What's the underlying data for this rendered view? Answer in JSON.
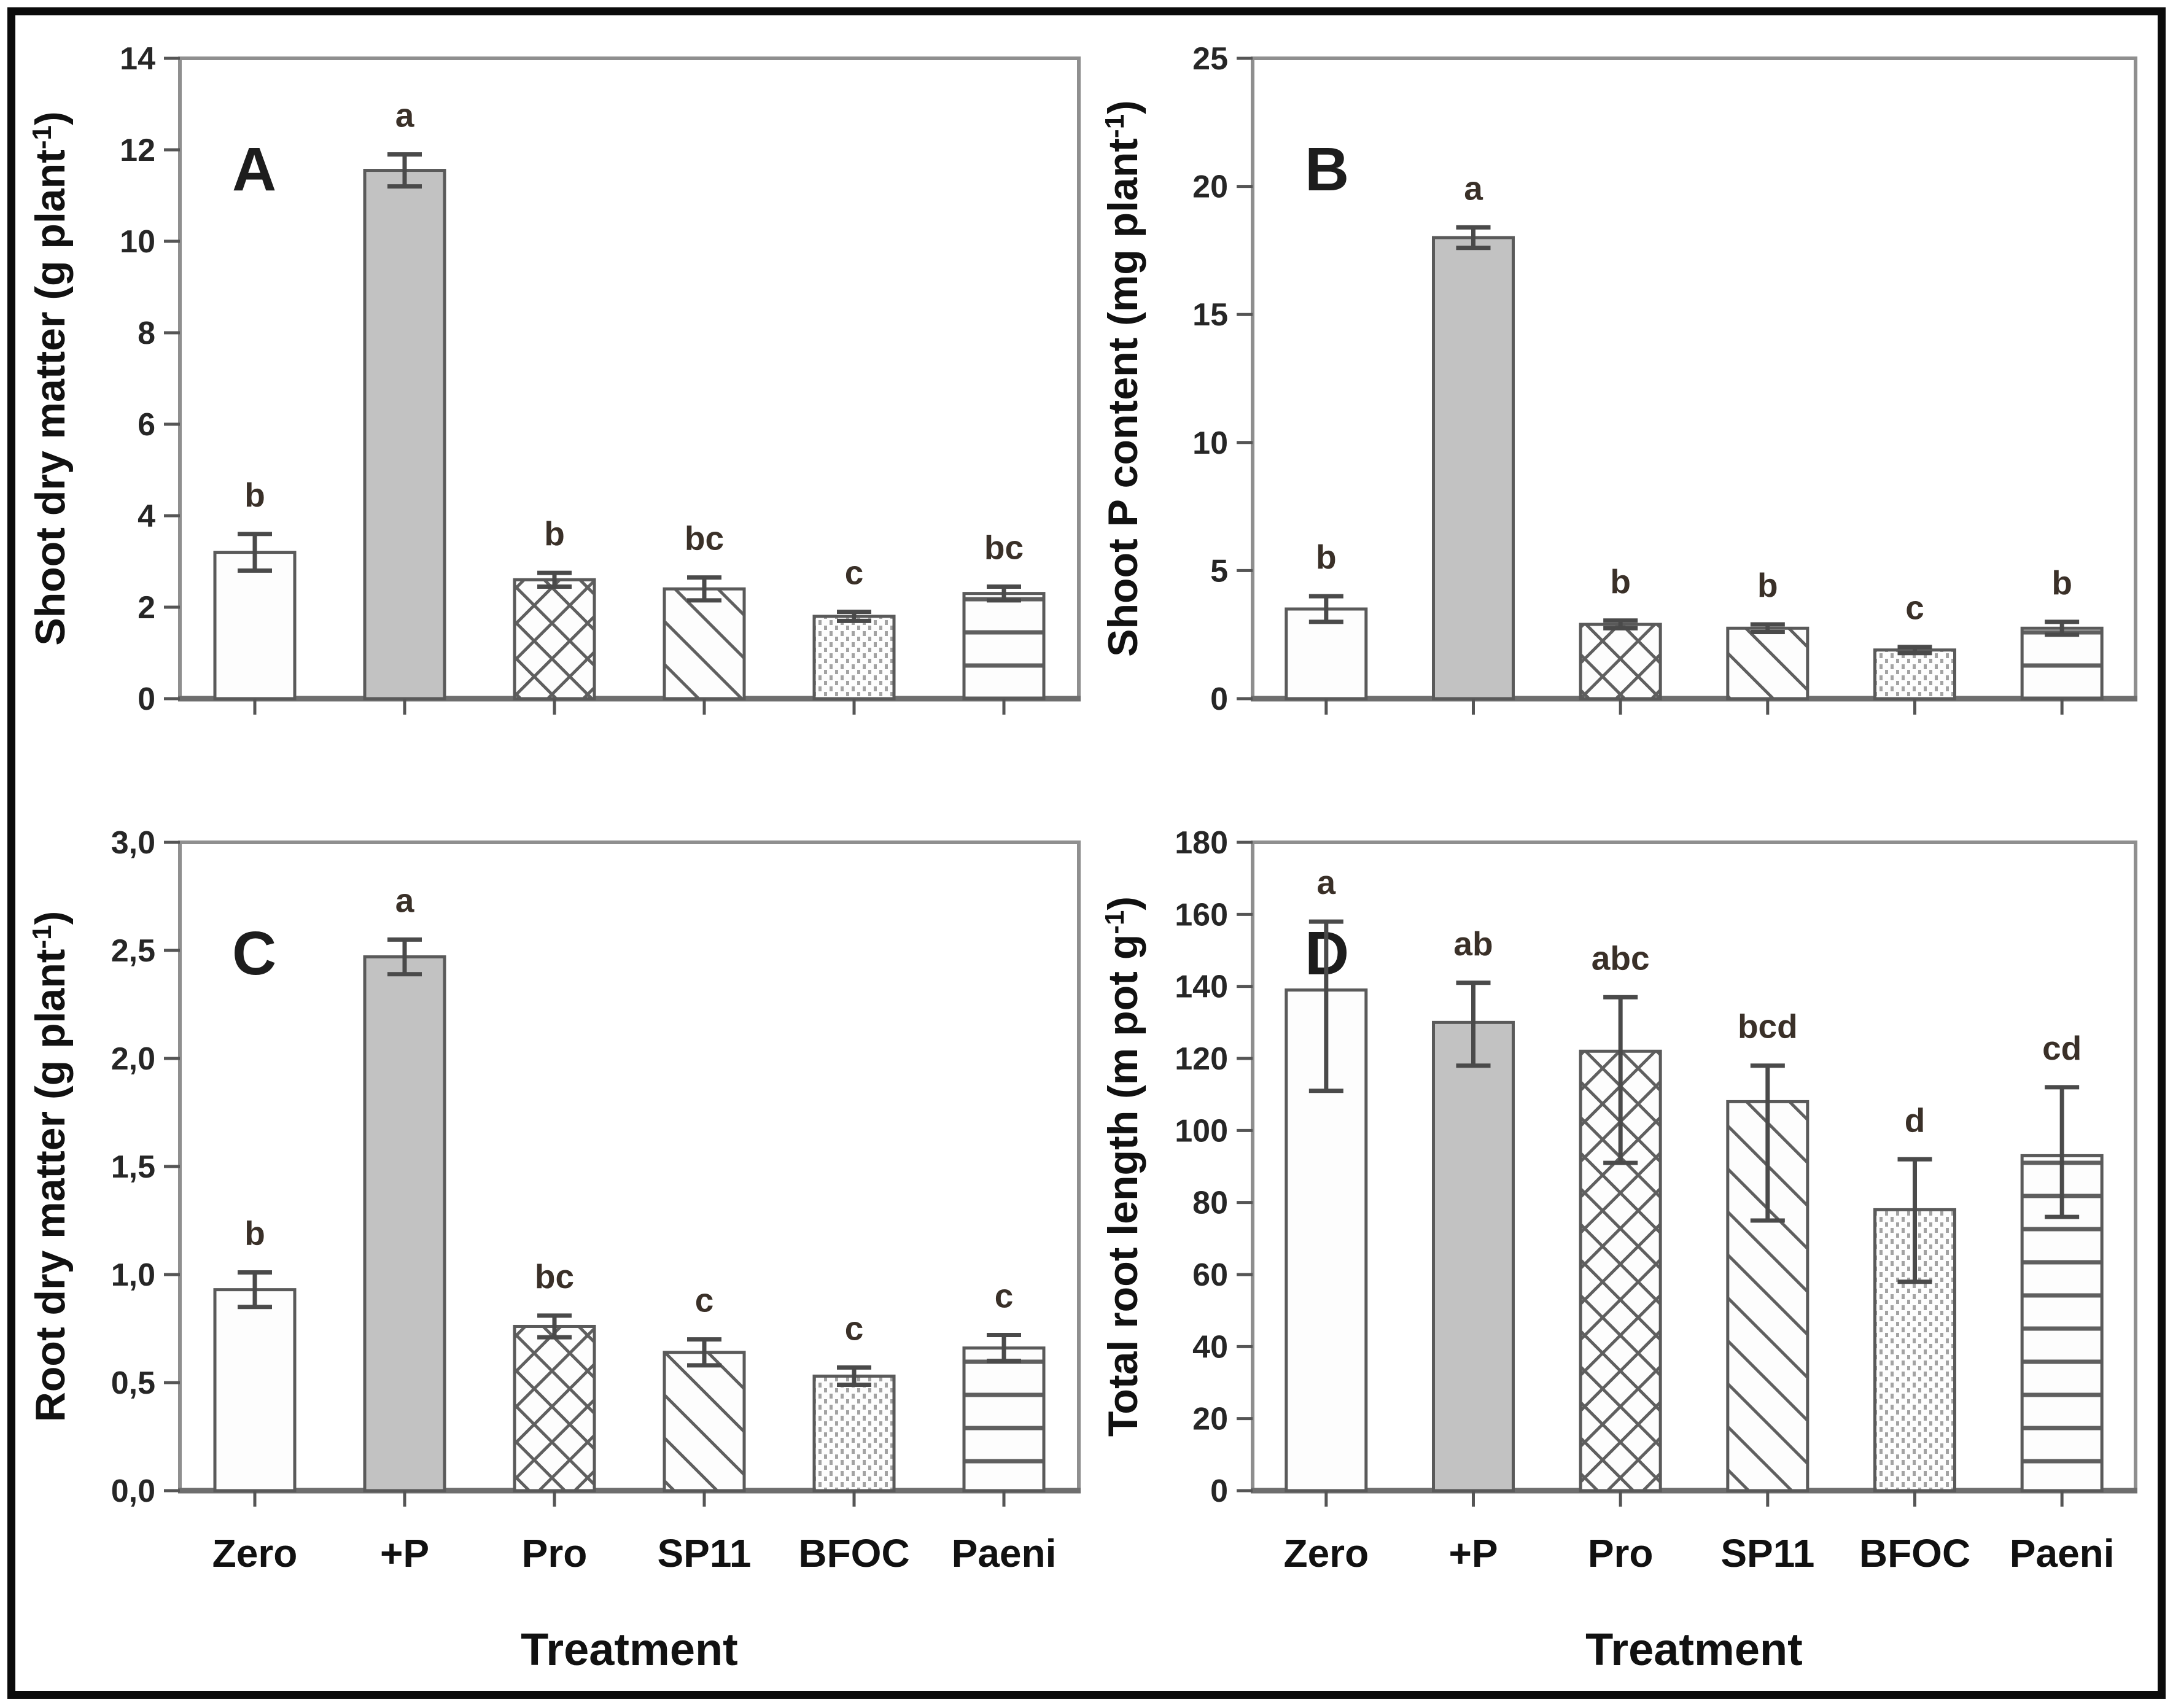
{
  "figure": {
    "categories": [
      "Zero",
      "+P",
      "Pro",
      "SP11",
      "BFOC",
      "Paeni"
    ],
    "xlabel": "Treatment",
    "bar_styles": [
      "plain",
      "solid",
      "crosshatch",
      "diagonal",
      "dots",
      "hlines"
    ],
    "colors": {
      "background": "#ffffff",
      "outer_border": "#0b0b0b",
      "frame": "#8f8f8f",
      "baseline": "#6e6e6e",
      "bar_outline": "#5a5a5a",
      "solid_fill": "#c2c2c2",
      "plain_fill": "#fdfdfd",
      "hatch_line": "#5f5f5f",
      "dot_fill": "#a3a3a3",
      "error_bar": "#4a4a4a",
      "tick_text": "#262626",
      "sig_letter": "#3a3028",
      "axis_title": "#111111"
    }
  },
  "chart_data": [
    {
      "panel": "A",
      "type": "bar",
      "ylabel_pre": "Shoot dry matter (g plant",
      "ylabel_sup": "-1",
      "ylabel_post": ")",
      "ymax": 14,
      "ytick_values": [
        0,
        2,
        4,
        6,
        8,
        10,
        12,
        14
      ],
      "ytick_labels": [
        "0",
        "2",
        "4",
        "6",
        "8",
        "10",
        "12",
        "14"
      ],
      "categories": [
        "Zero",
        "+P",
        "Pro",
        "SP11",
        "BFOC",
        "Paeni"
      ],
      "values": [
        3.2,
        11.55,
        2.6,
        2.4,
        1.8,
        2.3
      ],
      "errors_up": [
        0.4,
        0.35,
        0.15,
        0.25,
        0.1,
        0.15
      ],
      "errors_down": [
        0.4,
        0.35,
        0.15,
        0.25,
        0.1,
        0.15
      ],
      "sig_letters": [
        "b",
        "a",
        "b",
        "bc",
        "c",
        "bc"
      ],
      "show_x_labels": false,
      "xlabel": ""
    },
    {
      "panel": "B",
      "type": "bar",
      "ylabel_pre": "Shoot P content (mg plant",
      "ylabel_sup": "-1",
      "ylabel_post": ")",
      "ymax": 25,
      "ytick_values": [
        0,
        5,
        10,
        15,
        20,
        25
      ],
      "ytick_labels": [
        "0",
        "5",
        "10",
        "15",
        "20",
        "25"
      ],
      "categories": [
        "Zero",
        "+P",
        "Pro",
        "SP11",
        "BFOC",
        "Paeni"
      ],
      "values": [
        3.5,
        18.0,
        2.9,
        2.75,
        1.9,
        2.75
      ],
      "errors_up": [
        0.5,
        0.4,
        0.15,
        0.15,
        0.12,
        0.25
      ],
      "errors_down": [
        0.5,
        0.4,
        0.15,
        0.15,
        0.12,
        0.25
      ],
      "sig_letters": [
        "b",
        "a",
        "b",
        "b",
        "c",
        "b"
      ],
      "show_x_labels": false,
      "xlabel": ""
    },
    {
      "panel": "C",
      "type": "bar",
      "ylabel_pre": "Root dry matter (g plant",
      "ylabel_sup": "-1",
      "ylabel_post": ")",
      "ymax": 3.0,
      "ytick_values": [
        0,
        0.5,
        1.0,
        1.5,
        2.0,
        2.5,
        3.0
      ],
      "ytick_labels": [
        "0,0",
        "0,5",
        "1,0",
        "1,5",
        "2,0",
        "2,5",
        "3,0"
      ],
      "categories": [
        "Zero",
        "+P",
        "Pro",
        "SP11",
        "BFOC",
        "Paeni"
      ],
      "values": [
        0.93,
        2.47,
        0.76,
        0.64,
        0.53,
        0.66
      ],
      "errors_up": [
        0.08,
        0.08,
        0.05,
        0.06,
        0.04,
        0.06
      ],
      "errors_down": [
        0.08,
        0.08,
        0.05,
        0.06,
        0.04,
        0.06
      ],
      "sig_letters": [
        "b",
        "a",
        "bc",
        "c",
        "c",
        "c"
      ],
      "show_x_labels": true,
      "xlabel": "Treatment"
    },
    {
      "panel": "D",
      "type": "bar",
      "ylabel_pre": "Total root length (m pot g",
      "ylabel_sup": "-1",
      "ylabel_post": ")",
      "ymax": 180,
      "ytick_values": [
        0,
        20,
        40,
        60,
        80,
        100,
        120,
        140,
        160,
        180
      ],
      "ytick_labels": [
        "0",
        "20",
        "40",
        "60",
        "80",
        "100",
        "120",
        "140",
        "160",
        "180"
      ],
      "categories": [
        "Zero",
        "+P",
        "Pro",
        "SP11",
        "BFOC",
        "Paeni"
      ],
      "values": [
        139,
        130,
        122,
        108,
        78,
        93
      ],
      "errors_up": [
        19,
        11,
        15,
        10,
        14,
        19
      ],
      "errors_down": [
        28,
        12,
        31,
        33,
        20,
        17
      ],
      "sig_letters": [
        "a",
        "ab",
        "abc",
        "bcd",
        "d",
        "cd"
      ],
      "show_x_labels": true,
      "xlabel": "Treatment"
    }
  ]
}
